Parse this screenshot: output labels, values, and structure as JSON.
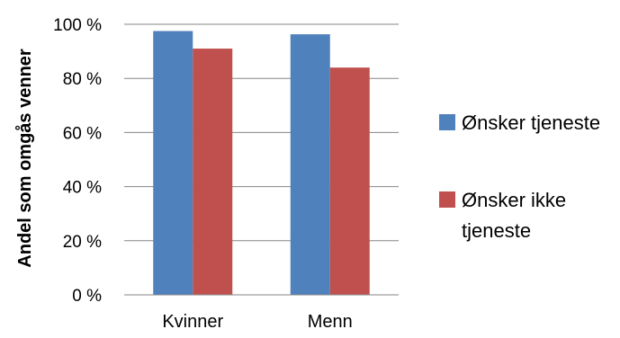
{
  "chart_data": {
    "type": "bar",
    "title": "",
    "xlabel": "",
    "ylabel": "Andel som omgås venner",
    "categories": [
      "Kvinner",
      "Menn"
    ],
    "series": [
      {
        "name": "Ønsker tjeneste",
        "values": [
          97.5,
          96.3
        ],
        "color": "#4f81bd"
      },
      {
        "name": "Ønsker ikke tjeneste",
        "values": [
          91.0,
          84.0
        ],
        "color": "#c0504d"
      }
    ],
    "ylim": [
      0,
      100
    ],
    "yticks": [
      0,
      20,
      40,
      60,
      80,
      100
    ],
    "ytick_labels": [
      "0 %",
      "20 %",
      "40 %",
      "60 %",
      "80 %",
      "100 %"
    ],
    "grid": true,
    "legend_position": "right",
    "legend": {
      "lines": [
        [
          "Ønsker tjeneste"
        ],
        [
          "Ønsker ikke",
          "tjeneste"
        ]
      ]
    }
  }
}
